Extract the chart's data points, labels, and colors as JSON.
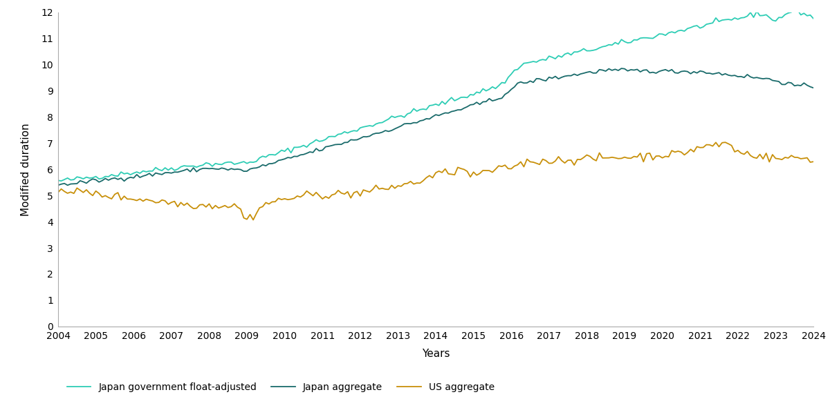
{
  "title": "",
  "ylabel": "Modified duration",
  "xlabel": "Years",
  "ylim": [
    0,
    12
  ],
  "yticks": [
    0,
    1,
    2,
    3,
    4,
    5,
    6,
    7,
    8,
    9,
    10,
    11,
    12
  ],
  "xlim": [
    2004.0,
    2024.0
  ],
  "xtick_positions": [
    2004,
    2005,
    2006,
    2007,
    2008,
    2009,
    2010,
    2011,
    2012,
    2013,
    2014,
    2015,
    2016,
    2017,
    2018,
    2019,
    2020,
    2021,
    2022,
    2023,
    2024
  ],
  "xtick_labels": [
    "2004",
    "2005",
    "2006",
    "2007",
    "2008",
    "2009",
    "2010",
    "2011",
    "2012",
    "2013",
    "2014",
    "2015",
    "2016",
    "2017",
    "2018",
    "2019",
    "2020",
    "2021",
    "2022",
    "2023",
    "2024"
  ],
  "colors": {
    "japan_float": "#2ECDB5",
    "japan_agg": "#1A6B6B",
    "us_agg": "#C8900A"
  },
  "legend_labels": [
    "Japan government float-adjusted",
    "Japan aggregate",
    "US aggregate"
  ],
  "background_color": "#ffffff",
  "line_width": 1.3,
  "noise_seed": 42,
  "noise_japan_float": 0.05,
  "noise_japan_agg": 0.04,
  "noise_us_agg": 0.08
}
